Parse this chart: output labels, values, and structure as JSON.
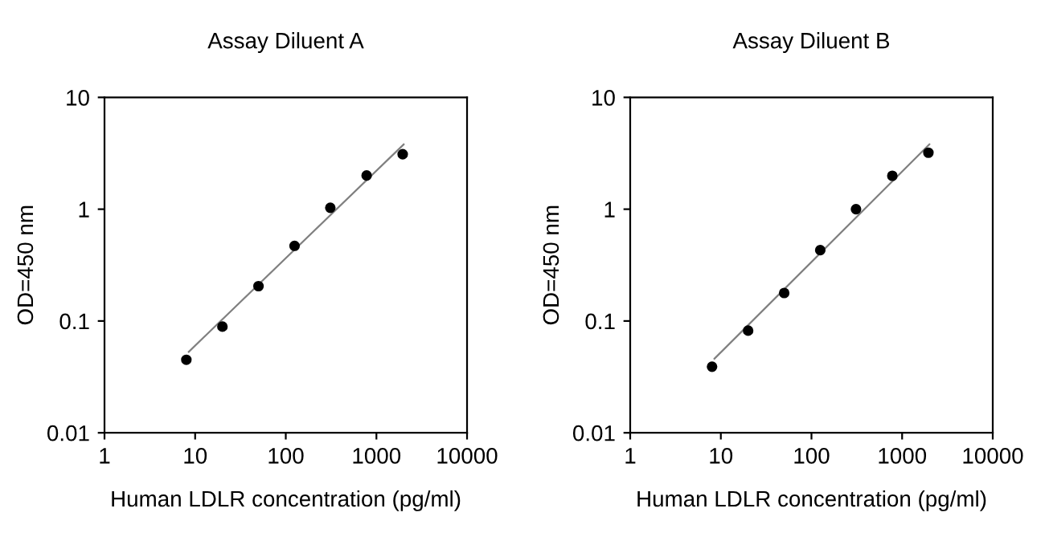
{
  "chart_data": [
    {
      "type": "scatter",
      "title": "Assay Diluent A",
      "xlabel": "Human LDLR concentration (pg/ml)",
      "ylabel": "OD=450 nm",
      "log": "xy",
      "xlim": [
        1,
        10000
      ],
      "ylim": [
        0.01,
        10
      ],
      "xticks": [
        1,
        10,
        100,
        1000,
        10000
      ],
      "yticks": [
        0.01,
        0.1,
        1,
        10
      ],
      "grid": false,
      "legend": false,
      "series": [
        {
          "color": "#000000",
          "marker": "circle",
          "x": [
            8,
            20,
            50,
            125,
            310,
            780,
            1950
          ],
          "values": [
            0.045,
            0.089,
            0.205,
            0.47,
            1.03,
            2.0,
            3.1
          ]
        },
        {
          "type": "line",
          "color": "#808080",
          "marker": "none",
          "line_style": "solid",
          "x": [
            8.5,
            2000
          ],
          "values": [
            0.053,
            3.8
          ]
        }
      ]
    },
    {
      "type": "scatter",
      "title": "Assay Diluent B",
      "xlabel": "Human LDLR concentration (pg/ml)",
      "ylabel": "OD=450 nm",
      "log": "xy",
      "xlim": [
        1,
        10000
      ],
      "ylim": [
        0.01,
        10
      ],
      "xticks": [
        1,
        10,
        100,
        1000,
        10000
      ],
      "yticks": [
        0.01,
        0.1,
        1,
        10
      ],
      "grid": false,
      "legend": false,
      "series": [
        {
          "color": "#000000",
          "marker": "circle",
          "x": [
            8,
            20,
            50,
            125,
            310,
            780,
            1950
          ],
          "values": [
            0.039,
            0.082,
            0.178,
            0.43,
            1.0,
            1.99,
            3.2
          ]
        },
        {
          "type": "line",
          "color": "#808080",
          "marker": "none",
          "line_style": "solid",
          "x": [
            8.5,
            2000
          ],
          "values": [
            0.046,
            3.8
          ]
        }
      ]
    }
  ]
}
